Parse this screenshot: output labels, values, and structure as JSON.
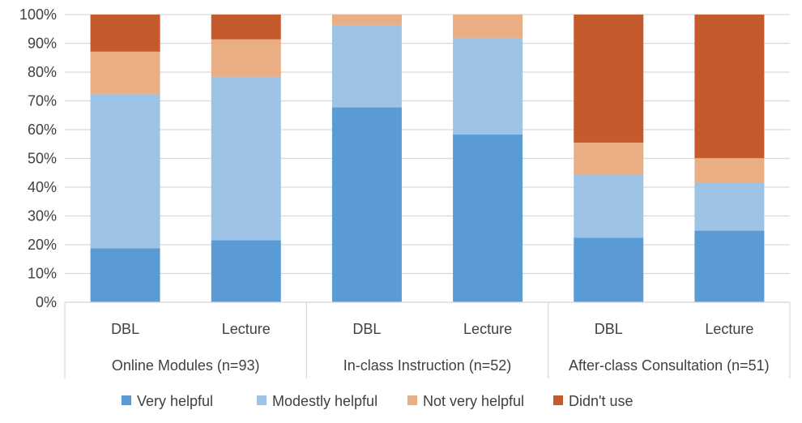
{
  "chart_data": {
    "type": "bar",
    "stacked": true,
    "groups": [
      {
        "label": "Online Modules (n=93)",
        "categories": [
          "DBL",
          "Lecture"
        ]
      },
      {
        "label": "In-class Instruction (n=52)",
        "categories": [
          "DBL",
          "Lecture"
        ]
      },
      {
        "label": "After-class Consultation (n=51)",
        "categories": [
          "DBL",
          "Lecture"
        ]
      }
    ],
    "series": [
      {
        "name": "Very helpful",
        "color": "#5b9bd5",
        "values": [
          18.8,
          21.6,
          67.8,
          58.3,
          22.4,
          24.9
        ]
      },
      {
        "name": "Modestly helpful",
        "color": "#9dc3e6",
        "values": [
          53.5,
          56.8,
          28.6,
          33.6,
          22.1,
          16.8
        ]
      },
      {
        "name": "Not very helpful",
        "color": "#e9ae83",
        "values": [
          14.8,
          13.0,
          3.6,
          8.1,
          11.0,
          8.4
        ]
      },
      {
        "name": "Didn't use",
        "color": "#c55a2d",
        "values": [
          12.9,
          8.6,
          0,
          0,
          44.5,
          49.9
        ]
      }
    ],
    "yticks": [
      "0%",
      "10%",
      "20%",
      "30%",
      "40%",
      "50%",
      "60%",
      "70%",
      "80%",
      "90%",
      "100%"
    ],
    "ylim": [
      0,
      100
    ],
    "grid": true,
    "legend": "bottom"
  }
}
